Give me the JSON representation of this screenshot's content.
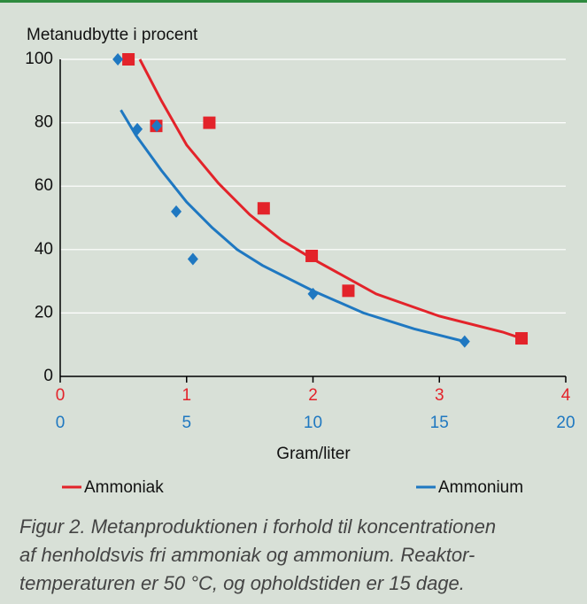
{
  "chart_data": {
    "type": "scatter",
    "ylabel": "Metanudbytte i procent",
    "xlabel": "Gram/liter",
    "ylim": [
      0,
      100
    ],
    "yticks": [
      0,
      20,
      40,
      60,
      80,
      100
    ],
    "grid": true,
    "xlim": [
      0,
      4
    ],
    "xticks": [
      0,
      1,
      2,
      3,
      4
    ],
    "x2lim": [
      0,
      20
    ],
    "x2ticks": [
      0,
      5,
      10,
      15,
      20
    ],
    "series": [
      {
        "name": "Ammoniak",
        "color": "#e3232a",
        "axis": "x",
        "marker": "square",
        "points": {
          "x": [
            0.54,
            0.76,
            1.18,
            1.61,
            1.99,
            2.28,
            3.65
          ],
          "y": [
            100,
            79,
            80,
            53,
            38,
            27,
            12
          ]
        },
        "fit": {
          "x": [
            0.63,
            0.8,
            1,
            1.25,
            1.5,
            1.75,
            2,
            2.5,
            3,
            3.5,
            3.65
          ],
          "y": [
            100,
            87,
            73,
            61,
            51,
            43,
            37,
            26,
            19,
            14,
            12
          ]
        }
      },
      {
        "name": "Ammonium",
        "color": "#1f78c1",
        "axis": "x2",
        "marker": "diamond",
        "points": {
          "x": [
            2.28,
            3.05,
            3.82,
            4.59,
            5.25,
            10,
            16
          ],
          "y": [
            100,
            78,
            79,
            52,
            37,
            26,
            11
          ]
        },
        "fit": {
          "x": [
            2.4,
            3,
            4,
            5,
            6,
            7,
            8,
            10,
            12,
            14,
            16
          ],
          "y": [
            84,
            76,
            65,
            55,
            47,
            40,
            35,
            27,
            20,
            15,
            11
          ]
        }
      }
    ],
    "caption": [
      "Figur 2. Metanproduktionen i forhold til koncentrationen",
      "af henholdsvis fri ammoniak og ammonium. Reaktor-",
      "temperaturen er 50 °C, og opholdstiden er 15 dage."
    ]
  }
}
